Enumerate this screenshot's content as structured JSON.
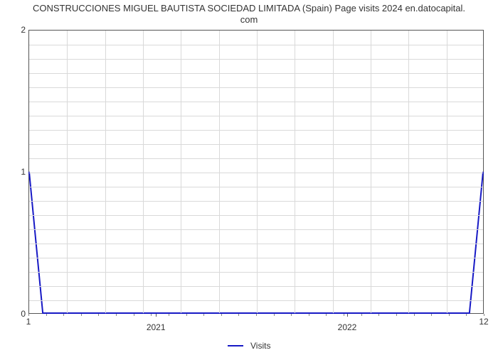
{
  "chart": {
    "type": "line",
    "title_line1": "CONSTRUCCIONES MIGUEL BAUTISTA SOCIEDAD LIMITADA (Spain) Page visits 2024 en.datocapital.",
    "title_line2": "com",
    "title_fontsize": 13,
    "title_color": "#333333",
    "background_color": "#ffffff",
    "plot_border_color": "#555555",
    "grid_color": "#d9d9d9",
    "series_color": "#1719c5",
    "series_width": 2,
    "xlim_labels": [
      "1",
      "12"
    ],
    "x_major_labels": [
      "2021",
      "2022"
    ],
    "x_major_positions": [
      0.28,
      0.7
    ],
    "x_minor_count": 26,
    "ylim": [
      0,
      2
    ],
    "y_ticks": [
      0,
      1,
      2
    ],
    "y_horizontal_gridlines": 20,
    "x_vertical_gridlines": 12,
    "data_points": [
      {
        "x": 0.0,
        "y": 1.0
      },
      {
        "x": 0.03,
        "y": 0.0
      },
      {
        "x": 0.97,
        "y": 0.0
      },
      {
        "x": 1.0,
        "y": 1.0
      }
    ],
    "legend": {
      "label": "Visits",
      "color": "#1719c5"
    }
  }
}
